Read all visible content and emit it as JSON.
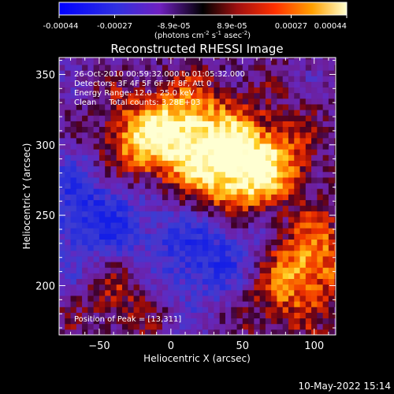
{
  "colorbar": {
    "tick_labels": [
      "-0.00044",
      "-0.00027",
      "-8.9e-05",
      "8.9e-05",
      "0.00027",
      "0.00044"
    ],
    "tick_values": [
      -0.00044,
      -0.00027,
      -8.9e-05,
      8.9e-05,
      0.00027,
      0.00044
    ],
    "range": [
      -0.00044,
      0.00044
    ],
    "units_main": "(photons cm",
    "units_exp1": "-2",
    "units_mid": " s",
    "units_exp2": "-1",
    "units_end": " asec",
    "units_exp3": "-2",
    "units_close": ")"
  },
  "chart_data": {
    "type": "heatmap",
    "title": "Reconstructed RHESSI Image",
    "xlabel": "Heliocentric X (arcsec)",
    "ylabel": "Heliocentric Y (arcsec)",
    "xlim": [
      -78,
      115
    ],
    "ylim": [
      165,
      362
    ],
    "x_ticks": [
      -50,
      0,
      50,
      100
    ],
    "y_ticks": [
      200,
      250,
      300,
      350
    ],
    "x_tick_labels": [
      "−50",
      "0",
      "50",
      "100"
    ],
    "y_tick_labels": [
      "200",
      "250",
      "300",
      "350"
    ],
    "peak_position": [
      13,
      311
    ],
    "bright_regions": [
      {
        "x": 13,
        "y": 311,
        "intensity": 1.0
      },
      {
        "x": -25,
        "y": 300,
        "intensity": 0.85
      },
      {
        "x": 40,
        "y": 275,
        "intensity": 0.9
      },
      {
        "x": 65,
        "y": 290,
        "intensity": 0.85
      },
      {
        "x": 95,
        "y": 220,
        "intensity": 0.85
      },
      {
        "x": -35,
        "y": 200,
        "intensity": 0.6
      },
      {
        "x": 70,
        "y": 195,
        "intensity": 0.55
      }
    ],
    "dark_regions": [
      {
        "x": -50,
        "y": 235,
        "intensity": -0.6
      },
      {
        "x": 15,
        "y": 220,
        "intensity": -0.55
      },
      {
        "x": 55,
        "y": 225,
        "intensity": -0.45
      },
      {
        "x": -60,
        "y": 275,
        "intensity": -0.4
      }
    ]
  },
  "annotations": {
    "time_range": "26-Oct-2010 00:59:32.000 to 01:05:32.000",
    "detectors": "Detectors: 3F 4F 5F 6F 7F 8F, Att 0",
    "energy": "Energy Range: 12.0 - 25.0 keV",
    "method_counts": "Clean     Total counts: 3.28E+03",
    "peak": "Position of Peak = [13,311]"
  },
  "footer": {
    "date": "10-May-2022 15:14"
  },
  "colors": {
    "background": "#000000",
    "text": "#ffffff"
  }
}
